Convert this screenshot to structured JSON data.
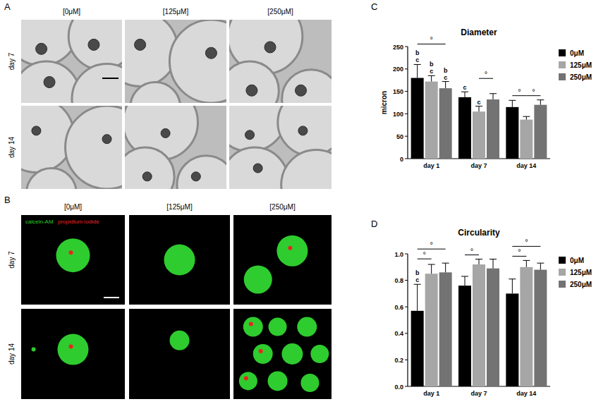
{
  "figure": {
    "panels": [
      {
        "label": "A",
        "columns": [
          "[0μM]",
          "[125μM]",
          "[250μM]"
        ],
        "rows": [
          "day 7",
          "day 14"
        ]
      },
      {
        "label": "B",
        "columns": [
          "[0μM]",
          "[125μM]",
          "[250μM]"
        ],
        "rows": [
          "day 7",
          "day 14"
        ],
        "stains": [
          {
            "text": "calcein-AM",
            "color": "#2ecc2e"
          },
          {
            "text": "propidium iodide",
            "color": "#ee2222"
          }
        ]
      },
      {
        "label": "C"
      },
      {
        "label": "D"
      }
    ]
  },
  "chart_data": [
    {
      "type": "bar",
      "title": "Diameter",
      "y_label": "micron",
      "categories": [
        "day 1",
        "day 7",
        "day 14"
      ],
      "series": [
        {
          "name": "0μM",
          "color": "#000000",
          "values": [
            180,
            137,
            115
          ],
          "errors": [
            30,
            12,
            15
          ]
        },
        {
          "name": "125μM",
          "color": "#a6a6a6",
          "values": [
            172,
            105,
            87
          ],
          "errors": [
            13,
            12,
            7
          ]
        },
        {
          "name": "250μM",
          "color": "#737373",
          "values": [
            157,
            132,
            120
          ],
          "errors": [
            15,
            13,
            11
          ]
        }
      ],
      "ylim": [
        0,
        250
      ],
      "yticks": [
        0,
        50,
        100,
        150,
        200,
        250
      ],
      "legend": "right",
      "letters": [
        {
          "category": 0,
          "series": 0,
          "lines": [
            "b",
            "c"
          ]
        },
        {
          "category": 0,
          "series": 1,
          "lines": [
            "b",
            "c"
          ]
        },
        {
          "category": 0,
          "series": 2,
          "lines": [
            "b",
            "c"
          ]
        },
        {
          "category": 1,
          "series": 0,
          "lines": [
            "c"
          ]
        },
        {
          "category": 1,
          "series": 1,
          "lines": [
            "c"
          ]
        }
      ],
      "significance": [
        {
          "category": 0,
          "from": 0,
          "to": 2,
          "text": "°"
        },
        {
          "category": 1,
          "from": 1,
          "to": 2,
          "text": "°"
        },
        {
          "category": 2,
          "from": 0,
          "to": 1,
          "text": "°"
        },
        {
          "category": 2,
          "from": 1,
          "to": 2,
          "text": "°"
        }
      ]
    },
    {
      "type": "bar",
      "title": "Circularity",
      "categories": [
        "day 1",
        "day 7",
        "day 14"
      ],
      "series": [
        {
          "name": "0μM",
          "color": "#000000",
          "values": [
            0.57,
            0.76,
            0.7
          ],
          "errors": [
            0.2,
            0.07,
            0.11
          ]
        },
        {
          "name": "125μM",
          "color": "#a6a6a6",
          "values": [
            0.85,
            0.92,
            0.9
          ],
          "errors": [
            0.07,
            0.04,
            0.05
          ]
        },
        {
          "name": "250μM",
          "color": "#737373",
          "values": [
            0.86,
            0.89,
            0.88
          ],
          "errors": [
            0.07,
            0.07,
            0.05
          ]
        }
      ],
      "ylim": [
        0,
        1
      ],
      "yticks": [
        {
          "value": 0,
          "label": "0.0"
        },
        0.2,
        0.4,
        0.6,
        0.8,
        {
          "value": 1,
          "label": "1.0"
        }
      ],
      "legend": "right",
      "letters": [
        {
          "category": 0,
          "series": 0,
          "lines": [
            "b",
            "c"
          ]
        }
      ],
      "significance": [
        {
          "category": 0,
          "from": 0,
          "to": 1,
          "text": "°"
        },
        {
          "category": 0,
          "from": 0,
          "to": 2,
          "text": "°"
        },
        {
          "category": 1,
          "from": 0,
          "to": 1,
          "text": "°"
        },
        {
          "category": 2,
          "from": 0,
          "to": 1,
          "text": "°"
        },
        {
          "category": 2,
          "from": 0,
          "to": 2,
          "text": "°"
        }
      ]
    }
  ]
}
